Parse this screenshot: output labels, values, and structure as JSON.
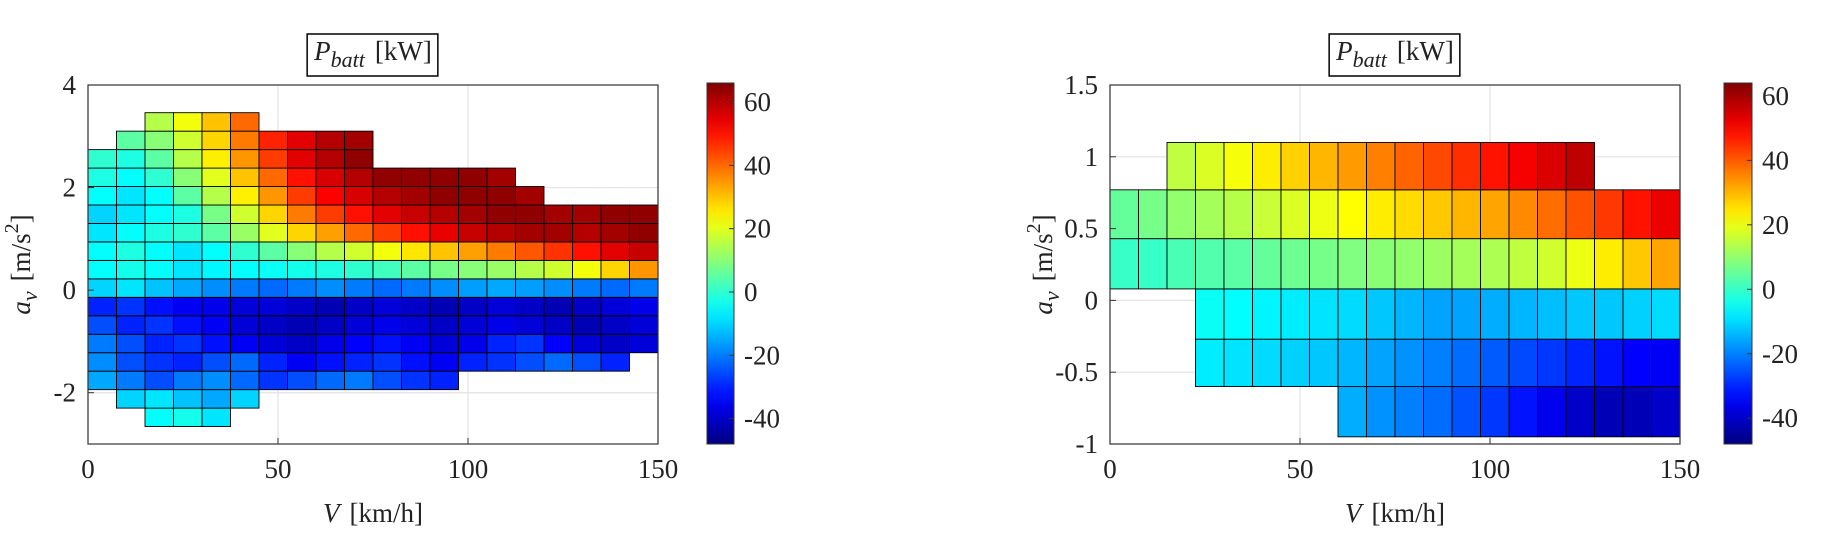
{
  "chart_data": [
    {
      "type": "heatmap",
      "colormap": "jet",
      "title_symbol": "P",
      "title_subscript": "batt",
      "title_unit": "[kW]",
      "xlabel_symbol": "V",
      "xlabel_unit": "[km/h]",
      "ylabel_symbol": "a",
      "ylabel_subscript": "v",
      "ylabel_unit": "[m/s",
      "ylabel_power": "2",
      "ylabel_close": "]",
      "xlim": [
        0,
        150
      ],
      "xticks": [
        0,
        50,
        100,
        150
      ],
      "ylim": [
        -3,
        4
      ],
      "yticks": [
        -2,
        0,
        2,
        4
      ],
      "zlim": [
        -48,
        66
      ],
      "zticks": [
        -40,
        -20,
        0,
        20,
        40,
        60
      ],
      "grid": true,
      "xbins": [
        0,
        7.5,
        15,
        22.5,
        30,
        37.5,
        45,
        52.5,
        60,
        67.5,
        75,
        82.5,
        90,
        97.5,
        105,
        112.5,
        120,
        127.5,
        135,
        142.5,
        150
      ],
      "ybins": [
        -2.66,
        -2.3,
        -1.94,
        -1.58,
        -1.22,
        -0.86,
        -0.5,
        -0.14,
        0.22,
        0.58,
        0.94,
        1.3,
        1.66,
        2.02,
        2.38,
        2.74,
        3.1,
        3.46
      ],
      "z": [
        [
          null,
          null,
          -5,
          -3,
          -8,
          null,
          null,
          null,
          null,
          null,
          null,
          null,
          null,
          null,
          null,
          null,
          null,
          null,
          null,
          null
        ],
        [
          null,
          -10,
          -8,
          -12,
          -15,
          -10,
          null,
          null,
          null,
          null,
          null,
          null,
          null,
          null,
          null,
          null,
          null,
          null,
          null,
          null
        ],
        [
          -15,
          -20,
          -25,
          -20,
          -18,
          -22,
          -28,
          -25,
          -22,
          -20,
          -25,
          -28,
          -30,
          null,
          null,
          null,
          null,
          null,
          null,
          null
        ],
        [
          -18,
          -25,
          -28,
          -30,
          -25,
          -22,
          -30,
          -35,
          -32,
          -30,
          -28,
          -32,
          -35,
          -30,
          -28,
          -25,
          -22,
          -25,
          -30,
          null
        ],
        [
          -20,
          -25,
          -30,
          -28,
          -32,
          -35,
          -38,
          -40,
          -36,
          -34,
          -32,
          -35,
          -38,
          -36,
          -30,
          -28,
          -34,
          -38,
          -40,
          -38
        ],
        [
          -25,
          -30,
          -28,
          -32,
          -35,
          -38,
          -40,
          -42,
          -40,
          -38,
          -36,
          -38,
          -40,
          -38,
          -36,
          -38,
          -40,
          -42,
          -40,
          -38
        ],
        [
          -30,
          -28,
          -32,
          -35,
          -36,
          -38,
          -38,
          -40,
          -42,
          -40,
          -38,
          -40,
          -42,
          -40,
          -38,
          -40,
          -42,
          -40,
          -38,
          -36
        ],
        [
          -10,
          -8,
          -12,
          -15,
          -18,
          -20,
          -22,
          -20,
          -18,
          -20,
          -22,
          -20,
          -18,
          -16,
          -15,
          -16,
          -18,
          -20,
          -22,
          -20
        ],
        [
          -5,
          -3,
          -5,
          -8,
          -6,
          -5,
          -4,
          -3,
          -2,
          0,
          2,
          5,
          8,
          10,
          12,
          15,
          18,
          22,
          28,
          35
        ],
        [
          -5,
          -2,
          -5,
          -8,
          -5,
          0,
          5,
          10,
          15,
          18,
          22,
          26,
          30,
          34,
          38,
          42,
          46,
          50,
          55,
          58
        ],
        [
          -8,
          -5,
          -2,
          0,
          5,
          12,
          20,
          28,
          34,
          40,
          45,
          50,
          54,
          58,
          60,
          62,
          62,
          60,
          62,
          64
        ],
        [
          -10,
          -8,
          -5,
          -2,
          8,
          18,
          28,
          38,
          45,
          50,
          55,
          58,
          60,
          62,
          64,
          64,
          62,
          62,
          64,
          64
        ],
        [
          -5,
          -8,
          -5,
          5,
          15,
          25,
          35,
          45,
          52,
          56,
          60,
          62,
          64,
          64,
          64,
          62,
          null,
          null,
          null,
          null
        ],
        [
          -2,
          -5,
          0,
          10,
          20,
          30,
          40,
          50,
          56,
          60,
          64,
          64,
          64,
          64,
          62,
          null,
          null,
          null,
          null,
          null
        ],
        [
          0,
          -2,
          5,
          15,
          25,
          35,
          45,
          55,
          60,
          64,
          null,
          null,
          null,
          null,
          null,
          null,
          null,
          null,
          null,
          null
        ],
        [
          null,
          5,
          10,
          18,
          28,
          38,
          48,
          55,
          60,
          62,
          null,
          null,
          null,
          null,
          null,
          null,
          null,
          null,
          null,
          null
        ],
        [
          null,
          null,
          15,
          22,
          30,
          40,
          null,
          null,
          null,
          null,
          null,
          null,
          null,
          null,
          null,
          null,
          null,
          null,
          null,
          null
        ]
      ]
    },
    {
      "type": "heatmap",
      "colormap": "jet",
      "title_symbol": "P",
      "title_subscript": "batt",
      "title_unit": "[kW]",
      "xlabel_symbol": "V",
      "xlabel_unit": "[km/h]",
      "ylabel_symbol": "a",
      "ylabel_subscript": "v",
      "ylabel_unit": "[m/s",
      "ylabel_power": "2",
      "ylabel_close": "]",
      "xlim": [
        0,
        150
      ],
      "xticks": [
        0,
        50,
        100,
        150
      ],
      "ylim": [
        -1,
        1.5
      ],
      "yticks": [
        -1,
        -0.5,
        0,
        0.5,
        1,
        1.5
      ],
      "zlim": [
        -48,
        64
      ],
      "zticks": [
        -40,
        -20,
        0,
        20,
        40,
        60
      ],
      "grid": true,
      "xbins": [
        0,
        7.5,
        15,
        22.5,
        30,
        37.5,
        45,
        52.5,
        60,
        67.5,
        75,
        82.5,
        90,
        97.5,
        105,
        112.5,
        120,
        127.5,
        135,
        142.5,
        150
      ],
      "ybins": [
        -0.95,
        -0.6,
        -0.27,
        0.08,
        0.43,
        0.77,
        1.1
      ],
      "z": [
        [
          null,
          null,
          null,
          null,
          null,
          null,
          null,
          null,
          -15,
          -18,
          -20,
          -22,
          -25,
          -28,
          -32,
          -36,
          -40,
          -42,
          -42,
          -40
        ],
        [
          null,
          null,
          null,
          -8,
          -9,
          -10,
          -11,
          -12,
          -14,
          -16,
          -18,
          -20,
          -22,
          -24,
          -26,
          -28,
          -30,
          -32,
          -34,
          -35
        ],
        [
          null,
          null,
          null,
          -5,
          -6,
          -7,
          -8,
          -9,
          -10,
          -12,
          -14,
          -16,
          -16,
          -15,
          -14,
          -13,
          -12,
          -12,
          -11,
          -10
        ],
        [
          0,
          0,
          2,
          3,
          4,
          5,
          6,
          7,
          8,
          9,
          10,
          11,
          12,
          13,
          15,
          17,
          20,
          24,
          28,
          32
        ],
        [
          5,
          7,
          10,
          12,
          14,
          16,
          18,
          20,
          22,
          24,
          26,
          28,
          30,
          32,
          35,
          38,
          41,
          44,
          48,
          52
        ],
        [
          null,
          null,
          15,
          18,
          21,
          24,
          27,
          30,
          33,
          36,
          39,
          42,
          45,
          48,
          51,
          54,
          57,
          null,
          null,
          null
        ]
      ]
    }
  ]
}
